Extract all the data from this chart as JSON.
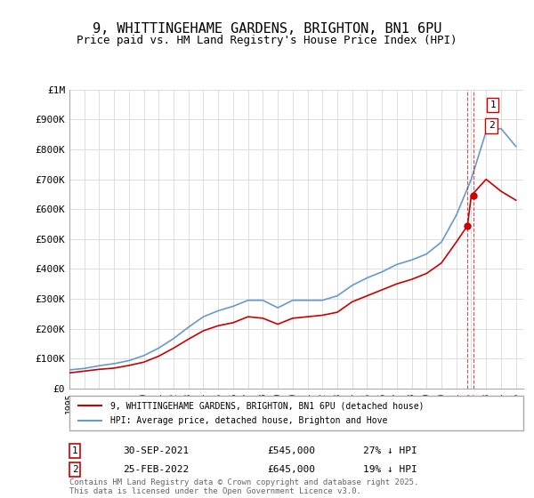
{
  "title": "9, WHITTINGEHAME GARDENS, BRIGHTON, BN1 6PU",
  "subtitle": "Price paid vs. HM Land Registry's House Price Index (HPI)",
  "title_fontsize": 11,
  "subtitle_fontsize": 9,
  "background_color": "#ffffff",
  "plot_bg_color": "#ffffff",
  "grid_color": "#dddddd",
  "ylim": [
    0,
    1000000
  ],
  "yticks": [
    0,
    100000,
    200000,
    300000,
    400000,
    500000,
    600000,
    700000,
    800000,
    900000,
    1000000
  ],
  "ytick_labels": [
    "£0",
    "£100K",
    "£200K",
    "£300K",
    "£400K",
    "£500K",
    "£600K",
    "£700K",
    "£800K",
    "£900K",
    "£1M"
  ],
  "xlabel": "",
  "red_line_label": "9, WHITTINGEHAME GARDENS, BRIGHTON, BN1 6PU (detached house)",
  "blue_line_label": "HPI: Average price, detached house, Brighton and Hove",
  "red_color": "#cc0000",
  "blue_color": "#6699cc",
  "annotation1_num": "1",
  "annotation1_date": "30-SEP-2021",
  "annotation1_price": "£545,000",
  "annotation1_hpi": "27% ↓ HPI",
  "annotation2_num": "2",
  "annotation2_date": "25-FEB-2022",
  "annotation2_price": "£645,000",
  "annotation2_hpi": "19% ↓ HPI",
  "footer": "Contains HM Land Registry data © Crown copyright and database right 2025.\nThis data is licensed under the Open Government Licence v3.0.",
  "hpi_years": [
    1995,
    1996,
    1997,
    1998,
    1999,
    2000,
    2001,
    2002,
    2003,
    2004,
    2005,
    2006,
    2007,
    2008,
    2009,
    2010,
    2011,
    2012,
    2013,
    2014,
    2015,
    2016,
    2017,
    2018,
    2019,
    2020,
    2021,
    2022,
    2023,
    2024,
    2025
  ],
  "hpi_values": [
    62000,
    67000,
    76000,
    83000,
    93000,
    110000,
    135000,
    167000,
    205000,
    240000,
    260000,
    275000,
    295000,
    295000,
    270000,
    295000,
    295000,
    295000,
    310000,
    345000,
    370000,
    390000,
    415000,
    430000,
    450000,
    490000,
    580000,
    700000,
    860000,
    870000,
    810000
  ],
  "red_years": [
    1995,
    1996,
    1997,
    1998,
    1999,
    2000,
    2001,
    2002,
    2003,
    2004,
    2005,
    2006,
    2007,
    2008,
    2009,
    2010,
    2011,
    2012,
    2013,
    2014,
    2015,
    2016,
    2017,
    2018,
    2019,
    2020,
    2021,
    2021.75,
    2022,
    2023,
    2024,
    2025
  ],
  "red_values": [
    52000,
    58000,
    64000,
    68000,
    77000,
    88000,
    108000,
    135000,
    165000,
    193000,
    210000,
    220000,
    240000,
    235000,
    215000,
    235000,
    240000,
    245000,
    255000,
    290000,
    310000,
    330000,
    350000,
    365000,
    385000,
    420000,
    490000,
    545000,
    645000,
    700000,
    660000,
    630000
  ]
}
